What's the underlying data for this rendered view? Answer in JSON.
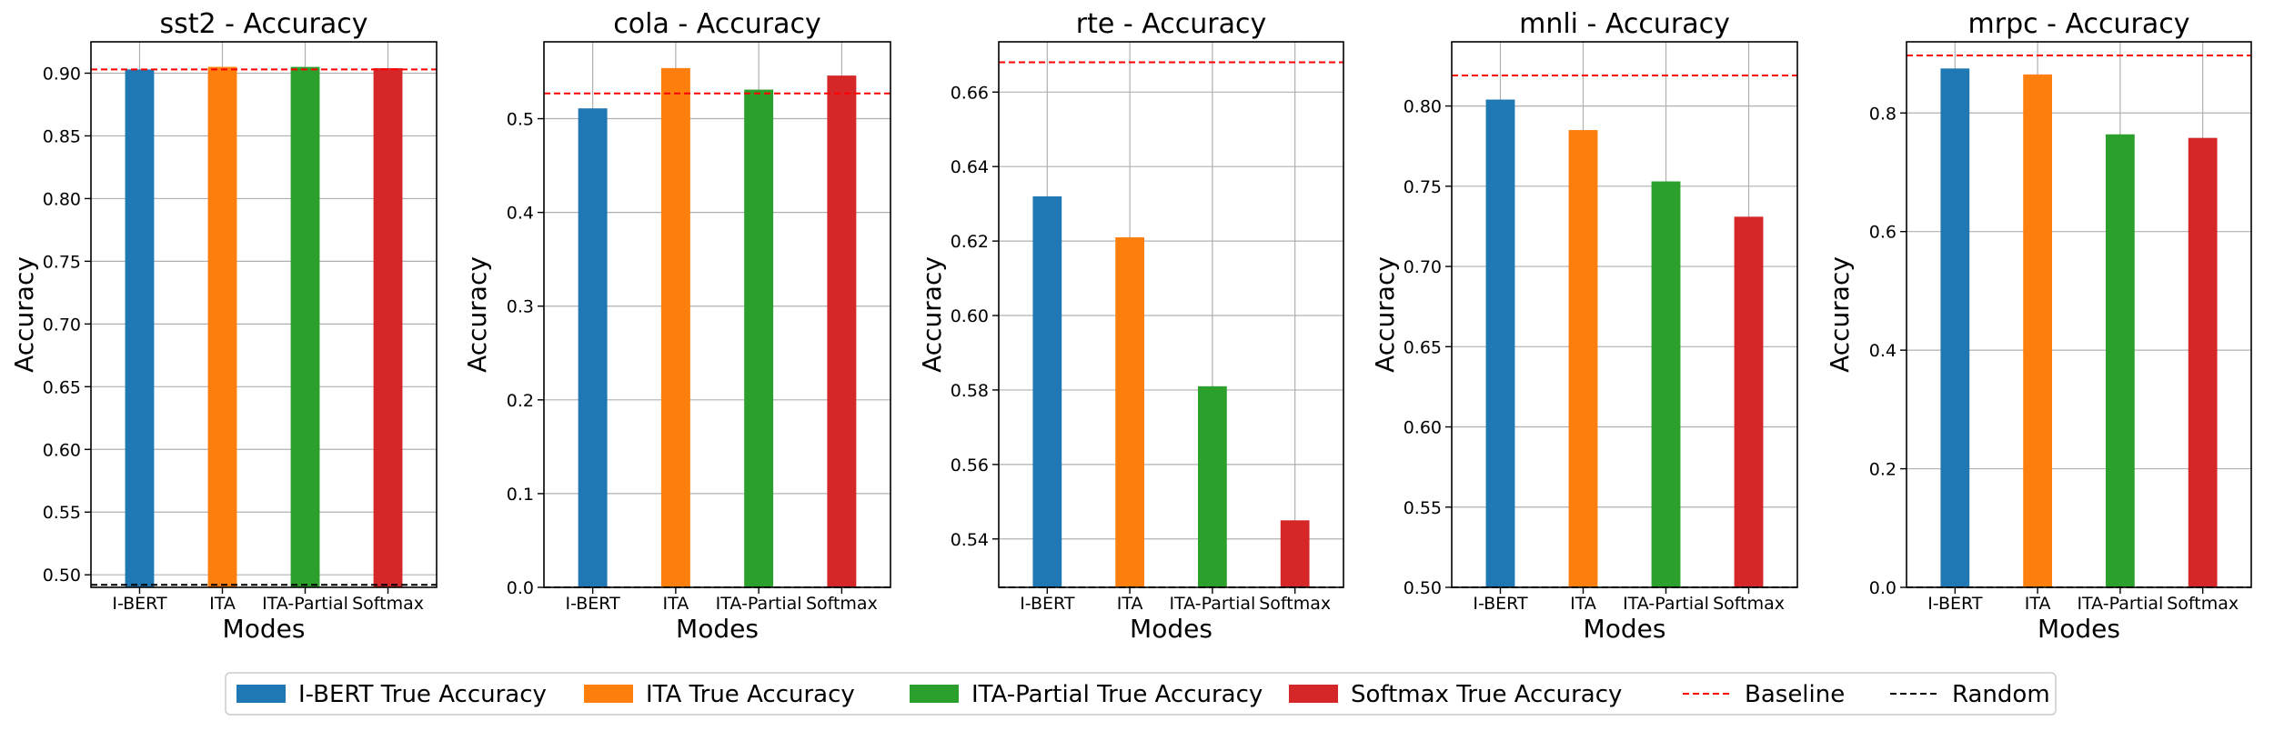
{
  "colors": {
    "I-BERT": "#1f77b4",
    "ITA": "#ff7f0e",
    "ITA-Partial": "#2ca02c",
    "Softmax": "#d62728",
    "baseline": "#ff0000",
    "random": "#000000",
    "grid": "#b0b0b0"
  },
  "legend": {
    "placement": "bottom-center",
    "items": [
      {
        "label": "I-BERT True Accuracy",
        "kind": "patch",
        "color_key": "I-BERT"
      },
      {
        "label": "ITA True Accuracy",
        "kind": "patch",
        "color_key": "ITA"
      },
      {
        "label": "ITA-Partial True Accuracy",
        "kind": "patch",
        "color_key": "ITA-Partial"
      },
      {
        "label": "Softmax True Accuracy",
        "kind": "patch",
        "color_key": "Softmax"
      },
      {
        "label": "Baseline",
        "kind": "line",
        "color_key": "baseline"
      },
      {
        "label": "Random",
        "kind": "line",
        "color_key": "random"
      }
    ]
  },
  "chart_data": [
    {
      "type": "bar",
      "title": "sst2 - Accuracy",
      "xlabel": "Modes",
      "ylabel": "Accuracy",
      "categories": [
        "I-BERT",
        "ITA",
        "ITA-Partial",
        "Softmax"
      ],
      "values": [
        0.903,
        0.905,
        0.905,
        0.904
      ],
      "baseline": 0.903,
      "random": 0.492,
      "ylim": [
        0.49,
        0.925
      ],
      "yticks": [
        0.5,
        0.55,
        0.6,
        0.65,
        0.7,
        0.75,
        0.8,
        0.85,
        0.9
      ],
      "ytick_labels": [
        "0.50",
        "0.55",
        "0.60",
        "0.65",
        "0.70",
        "0.75",
        "0.80",
        "0.85",
        "0.90"
      ],
      "grid": true
    },
    {
      "type": "bar",
      "title": "cola - Accuracy",
      "xlabel": "Modes",
      "ylabel": "Accuracy",
      "categories": [
        "I-BERT",
        "ITA",
        "ITA-Partial",
        "Softmax"
      ],
      "values": [
        0.511,
        0.554,
        0.531,
        0.546
      ],
      "baseline": 0.527,
      "random": 0.0,
      "ylim": [
        0.0,
        0.582
      ],
      "yticks": [
        0.0,
        0.1,
        0.2,
        0.3,
        0.4,
        0.5
      ],
      "ytick_labels": [
        "0.0",
        "0.1",
        "0.2",
        "0.3",
        "0.4",
        "0.5"
      ],
      "grid": true
    },
    {
      "type": "bar",
      "title": "rte - Accuracy",
      "xlabel": "Modes",
      "ylabel": "Accuracy",
      "categories": [
        "I-BERT",
        "ITA",
        "ITA-Partial",
        "Softmax"
      ],
      "values": [
        0.632,
        0.621,
        0.581,
        0.545
      ],
      "baseline": 0.668,
      "random": 0.527,
      "ylim": [
        0.527,
        0.6735
      ],
      "yticks": [
        0.54,
        0.56,
        0.58,
        0.6,
        0.62,
        0.64,
        0.66
      ],
      "ytick_labels": [
        "0.54",
        "0.56",
        "0.58",
        "0.60",
        "0.62",
        "0.64",
        "0.66"
      ],
      "grid": true
    },
    {
      "type": "bar",
      "title": "mnli - Accuracy",
      "xlabel": "Modes",
      "ylabel": "Accuracy",
      "categories": [
        "I-BERT",
        "ITA",
        "ITA-Partial",
        "Softmax"
      ],
      "values": [
        0.804,
        0.785,
        0.753,
        0.731
      ],
      "baseline": 0.819,
      "random": 0.5,
      "ylim": [
        0.5,
        0.84
      ],
      "yticks": [
        0.5,
        0.55,
        0.6,
        0.65,
        0.7,
        0.75,
        0.8
      ],
      "ytick_labels": [
        "0.50",
        "0.55",
        "0.60",
        "0.65",
        "0.70",
        "0.75",
        "0.80"
      ],
      "grid": true
    },
    {
      "type": "bar",
      "title": "mrpc - Accuracy",
      "xlabel": "Modes",
      "ylabel": "Accuracy",
      "categories": [
        "I-BERT",
        "ITA",
        "ITA-Partial",
        "Softmax"
      ],
      "values": [
        0.875,
        0.865,
        0.764,
        0.758
      ],
      "baseline": 0.897,
      "random": 0.0,
      "ylim": [
        0.0,
        0.92
      ],
      "yticks": [
        0.0,
        0.2,
        0.4,
        0.6,
        0.8
      ],
      "ytick_labels": [
        "0.0",
        "0.2",
        "0.4",
        "0.6",
        "0.8"
      ],
      "grid": true
    }
  ]
}
